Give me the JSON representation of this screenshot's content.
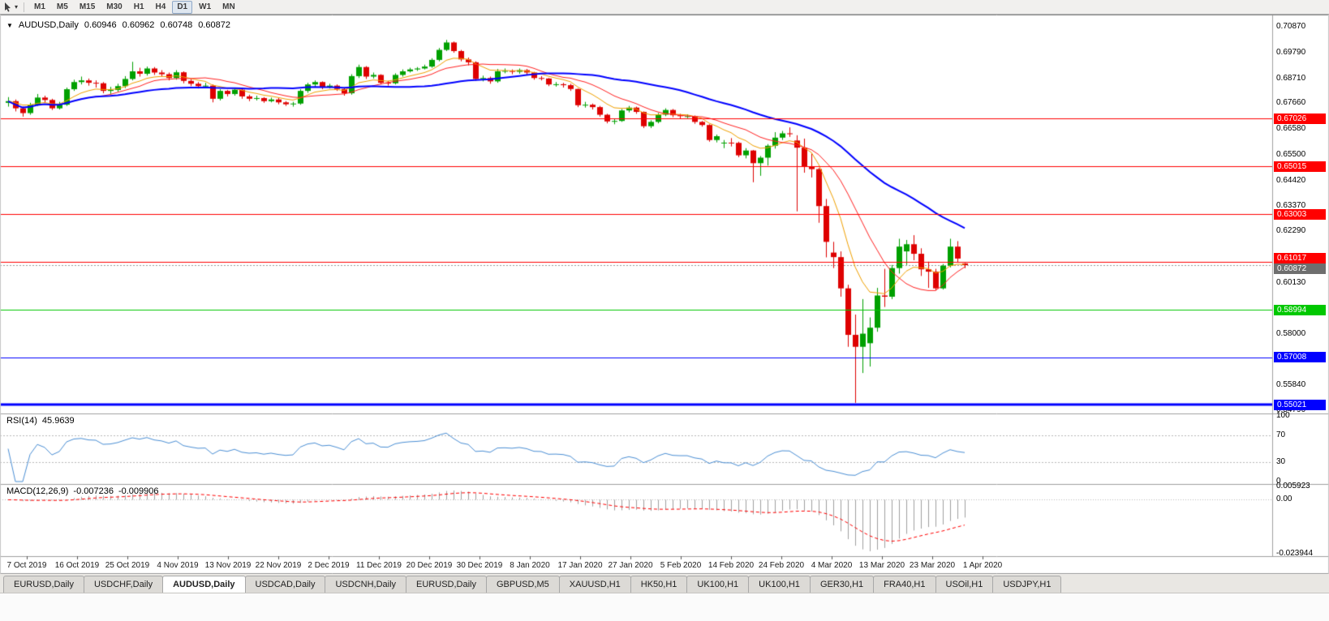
{
  "icons": {
    "collapse": "▼",
    "caret": "▾"
  },
  "toolbar": {
    "timeframes": [
      "M1",
      "M5",
      "M15",
      "M30",
      "H1",
      "H4",
      "D1",
      "W1",
      "MN"
    ],
    "active_timeframe": "D1"
  },
  "chart": {
    "title": "AUDUSD,Daily",
    "ohlc": {
      "open": "0.60946",
      "high": "0.60962",
      "low": "0.60748",
      "close": "0.60872"
    }
  },
  "rsi_panel": {
    "name": "RSI(14)",
    "value": "45.9639"
  },
  "macd_panel": {
    "name": "MACD(12,26,9)",
    "main_value": "-0.007236",
    "signal_value": "-0.009906"
  },
  "tabs": {
    "items": [
      "EURUSD,Daily",
      "USDCHF,Daily",
      "AUDUSD,Daily",
      "USDCAD,Daily",
      "USDCNH,Daily",
      "EURUSD,Daily",
      "GBPUSD,M5",
      "XAUUSD,H1",
      "HK50,H1",
      "UK100,H1",
      "UK100,H1",
      "GER30,H1",
      "FRA40,H1",
      "USOil,H1",
      "USDJPY,H1"
    ],
    "active_index": 2
  },
  "chart_data": {
    "type": "candlestick",
    "symbol": "AUDUSD",
    "timeframe": "Daily",
    "y_range": [
      0.5479,
      0.7087
    ],
    "y_tick_labels": [
      "0.70870",
      "0.69790",
      "0.68710",
      "0.67660",
      "0.66580",
      "0.65500",
      "0.64420",
      "0.63370",
      "0.62290",
      "0.60130",
      "0.58000",
      "0.55840",
      "0.54790"
    ],
    "x_tick_labels": [
      "7 Oct 2019",
      "16 Oct 2019",
      "25 Oct 2019",
      "4 Nov 2019",
      "13 Nov 2019",
      "22 Nov 2019",
      "2 Dec 2019",
      "11 Dec 2019",
      "20 Dec 2019",
      "30 Dec 2019",
      "8 Jan 2020",
      "17 Jan 2020",
      "27 Jan 2020",
      "5 Feb 2020",
      "14 Feb 2020",
      "24 Feb 2020",
      "4 Mar 2020",
      "13 Mar 2020",
      "23 Mar 2020",
      "1 Apr 2020"
    ],
    "up_color": "#00A000",
    "down_color": "#DE0000",
    "candles": [
      [
        0.6768,
        0.6792,
        0.6752,
        0.6775
      ],
      [
        0.6775,
        0.6782,
        0.6732,
        0.6745
      ],
      [
        0.6745,
        0.6752,
        0.671,
        0.6725
      ],
      [
        0.6725,
        0.6768,
        0.6718,
        0.676
      ],
      [
        0.676,
        0.6805,
        0.6755,
        0.679
      ],
      [
        0.679,
        0.6798,
        0.6768,
        0.678
      ],
      [
        0.678,
        0.6785,
        0.6738,
        0.6745
      ],
      [
        0.6745,
        0.6772,
        0.674,
        0.676
      ],
      [
        0.676,
        0.6832,
        0.6755,
        0.6825
      ],
      [
        0.6825,
        0.6865,
        0.6818,
        0.6855
      ],
      [
        0.6855,
        0.6878,
        0.6845,
        0.6862
      ],
      [
        0.6862,
        0.687,
        0.684,
        0.6852
      ],
      [
        0.6852,
        0.6862,
        0.6832,
        0.685
      ],
      [
        0.685,
        0.6855,
        0.6808,
        0.6818
      ],
      [
        0.6818,
        0.6835,
        0.6805,
        0.6822
      ],
      [
        0.6822,
        0.6848,
        0.6815,
        0.6838
      ],
      [
        0.6838,
        0.688,
        0.683,
        0.6868
      ],
      [
        0.6868,
        0.694,
        0.6862,
        0.69
      ],
      [
        0.69,
        0.6915,
        0.6878,
        0.689
      ],
      [
        0.689,
        0.692,
        0.6882,
        0.6912
      ],
      [
        0.6912,
        0.6918,
        0.6885,
        0.6895
      ],
      [
        0.6895,
        0.6905,
        0.6878,
        0.6888
      ],
      [
        0.6888,
        0.6895,
        0.6862,
        0.6872
      ],
      [
        0.6872,
        0.6905,
        0.6865,
        0.6896
      ],
      [
        0.6896,
        0.69,
        0.685,
        0.686
      ],
      [
        0.686,
        0.6868,
        0.6838,
        0.6848
      ],
      [
        0.6848,
        0.6855,
        0.6828,
        0.6838
      ],
      [
        0.6838,
        0.6852,
        0.683,
        0.684
      ],
      [
        0.684,
        0.6845,
        0.677,
        0.6785
      ],
      [
        0.6785,
        0.6825,
        0.6778,
        0.6818
      ],
      [
        0.6818,
        0.6822,
        0.6795,
        0.6805
      ],
      [
        0.6805,
        0.6832,
        0.6798,
        0.6823
      ],
      [
        0.6823,
        0.6828,
        0.6785,
        0.6795
      ],
      [
        0.6795,
        0.6802,
        0.6775,
        0.6785
      ],
      [
        0.6785,
        0.6798,
        0.6778,
        0.6788
      ],
      [
        0.6788,
        0.6792,
        0.6768,
        0.6775
      ],
      [
        0.6775,
        0.679,
        0.677,
        0.6782
      ],
      [
        0.6782,
        0.6788,
        0.6762,
        0.677
      ],
      [
        0.677,
        0.6775,
        0.6755,
        0.6762
      ],
      [
        0.6762,
        0.6772,
        0.6752,
        0.6765
      ],
      [
        0.6765,
        0.6825,
        0.676,
        0.6818
      ],
      [
        0.6818,
        0.6852,
        0.681,
        0.6845
      ],
      [
        0.6845,
        0.6862,
        0.6835,
        0.6855
      ],
      [
        0.6855,
        0.6858,
        0.6825,
        0.6835
      ],
      [
        0.6835,
        0.6848,
        0.6828,
        0.684
      ],
      [
        0.684,
        0.6845,
        0.6818,
        0.6826
      ],
      [
        0.6826,
        0.683,
        0.6798,
        0.6808
      ],
      [
        0.6808,
        0.6888,
        0.6802,
        0.688
      ],
      [
        0.688,
        0.6928,
        0.6872,
        0.6918
      ],
      [
        0.6918,
        0.6922,
        0.6868,
        0.6878
      ],
      [
        0.6878,
        0.6895,
        0.687,
        0.6885
      ],
      [
        0.6885,
        0.6888,
        0.6845,
        0.6852
      ],
      [
        0.6852,
        0.686,
        0.684,
        0.685
      ],
      [
        0.685,
        0.6892,
        0.6845,
        0.6885
      ],
      [
        0.6885,
        0.6908,
        0.6878,
        0.69
      ],
      [
        0.69,
        0.6915,
        0.6895,
        0.6908
      ],
      [
        0.6908,
        0.6918,
        0.6902,
        0.6912
      ],
      [
        0.6912,
        0.6928,
        0.6908,
        0.692
      ],
      [
        0.692,
        0.6955,
        0.6915,
        0.6948
      ],
      [
        0.6948,
        0.6998,
        0.6942,
        0.699
      ],
      [
        0.699,
        0.7032,
        0.6985,
        0.7021
      ],
      [
        0.7021,
        0.7025,
        0.6978,
        0.6985
      ],
      [
        0.6985,
        0.699,
        0.6942,
        0.695
      ],
      [
        0.695,
        0.6958,
        0.6925,
        0.6938
      ],
      [
        0.6938,
        0.6942,
        0.686,
        0.6868
      ],
      [
        0.6868,
        0.6882,
        0.6858,
        0.6872
      ],
      [
        0.6872,
        0.6878,
        0.6848,
        0.6858
      ],
      [
        0.6858,
        0.691,
        0.6852,
        0.69
      ],
      [
        0.69,
        0.6912,
        0.6892,
        0.6902
      ],
      [
        0.6902,
        0.6908,
        0.6888,
        0.6898
      ],
      [
        0.6898,
        0.6912,
        0.689,
        0.6905
      ],
      [
        0.6905,
        0.691,
        0.6885,
        0.6895
      ],
      [
        0.6895,
        0.6898,
        0.6865,
        0.6872
      ],
      [
        0.6872,
        0.688,
        0.6862,
        0.687
      ],
      [
        0.687,
        0.6872,
        0.6838,
        0.6845
      ],
      [
        0.6845,
        0.6855,
        0.6836,
        0.6846
      ],
      [
        0.6846,
        0.6852,
        0.6832,
        0.6842
      ],
      [
        0.6842,
        0.6848,
        0.6818,
        0.6826
      ],
      [
        0.6826,
        0.6828,
        0.675,
        0.6758
      ],
      [
        0.6758,
        0.6772,
        0.6748,
        0.676
      ],
      [
        0.676,
        0.6765,
        0.674,
        0.675
      ],
      [
        0.675,
        0.6755,
        0.671,
        0.6718
      ],
      [
        0.6718,
        0.6722,
        0.6682,
        0.669
      ],
      [
        0.669,
        0.6702,
        0.6678,
        0.6692
      ],
      [
        0.6692,
        0.6742,
        0.6688,
        0.6736
      ],
      [
        0.6736,
        0.6755,
        0.6728,
        0.6748
      ],
      [
        0.6748,
        0.6752,
        0.6722,
        0.673
      ],
      [
        0.673,
        0.6732,
        0.6662,
        0.667
      ],
      [
        0.667,
        0.6695,
        0.6662,
        0.6688
      ],
      [
        0.6688,
        0.6725,
        0.6682,
        0.6718
      ],
      [
        0.6718,
        0.6745,
        0.6712,
        0.6738
      ],
      [
        0.6738,
        0.6742,
        0.6708,
        0.6716
      ],
      [
        0.6716,
        0.6722,
        0.6702,
        0.6712
      ],
      [
        0.6712,
        0.672,
        0.6704,
        0.6712
      ],
      [
        0.6712,
        0.6715,
        0.668,
        0.6688
      ],
      [
        0.6688,
        0.6692,
        0.6668,
        0.6675
      ],
      [
        0.6675,
        0.6678,
        0.6605,
        0.6612
      ],
      [
        0.6612,
        0.6635,
        0.6602,
        0.6628
      ],
      [
        0.66,
        0.6612,
        0.6578,
        0.6601
      ],
      [
        0.6601,
        0.662,
        0.6585,
        0.66
      ],
      [
        0.66,
        0.6605,
        0.654,
        0.6548
      ],
      [
        0.6548,
        0.6578,
        0.6535,
        0.6568
      ],
      [
        0.6568,
        0.657,
        0.6435,
        0.6515
      ],
      [
        0.6515,
        0.6545,
        0.6462,
        0.6538
      ],
      [
        0.6538,
        0.6595,
        0.6505,
        0.6588
      ],
      [
        0.6588,
        0.6645,
        0.6576,
        0.6622
      ],
      [
        0.6622,
        0.665,
        0.6612,
        0.664
      ],
      [
        0.664,
        0.6665,
        0.6625,
        0.6638
      ],
      [
        0.661,
        0.6632,
        0.6313,
        0.658
      ],
      [
        0.658,
        0.6618,
        0.6475,
        0.65
      ],
      [
        0.65,
        0.6555,
        0.6455,
        0.649
      ],
      [
        0.649,
        0.6495,
        0.6265,
        0.6335
      ],
      [
        0.6335,
        0.6365,
        0.612,
        0.6185
      ],
      [
        0.614,
        0.6185,
        0.6075,
        0.6121
      ],
      [
        0.6121,
        0.6145,
        0.5955,
        0.599
      ],
      [
        0.599,
        0.6005,
        0.5745,
        0.5795
      ],
      [
        0.5795,
        0.588,
        0.551,
        0.5745
      ],
      [
        0.5745,
        0.5945,
        0.5635,
        0.58
      ],
      [
        0.576,
        0.5868,
        0.5662,
        0.5825
      ],
      [
        0.5825,
        0.5992,
        0.5808,
        0.596
      ],
      [
        0.596,
        0.6072,
        0.5912,
        0.5955
      ],
      [
        0.5955,
        0.6088,
        0.5945,
        0.6075
      ],
      [
        0.6075,
        0.6198,
        0.6052,
        0.6165
      ],
      [
        0.6145,
        0.6193,
        0.6088,
        0.6175
      ],
      [
        0.6175,
        0.6213,
        0.6108,
        0.6135
      ],
      [
        0.6135,
        0.6158,
        0.6042,
        0.607
      ],
      [
        0.607,
        0.6102,
        0.5992,
        0.606
      ],
      [
        0.606,
        0.6072,
        0.5982,
        0.599
      ],
      [
        0.599,
        0.6092,
        0.5985,
        0.6085
      ],
      [
        0.6085,
        0.6198,
        0.6078,
        0.6165
      ],
      [
        0.6165,
        0.6188,
        0.6098,
        0.6115
      ],
      [
        0.60946,
        0.60962,
        0.60748,
        0.60872
      ]
    ],
    "moving_averages": [
      {
        "name": "ma-fast",
        "method": "ema",
        "period": 8,
        "color": "#F0A000",
        "width": 1
      },
      {
        "name": "ma-medium",
        "method": "sma",
        "period": 13,
        "color": "#FF2020",
        "width": 1
      },
      {
        "name": "ma-slow",
        "method": "sma",
        "period": 34,
        "color": "#0000FF",
        "width": 2
      }
    ],
    "horizontal_levels": [
      {
        "price": 0.67026,
        "label": "0.67026",
        "color": "#FF0000",
        "width": 1
      },
      {
        "price": 0.65015,
        "label": "0.65015",
        "color": "#FF0000",
        "width": 1
      },
      {
        "price": 0.63003,
        "label": "0.63003",
        "color": "#FF0000",
        "width": 1
      },
      {
        "price": 0.61017,
        "label": "0.61017",
        "color": "#FF0000",
        "width": 1
      },
      {
        "price": 0.58994,
        "label": "0.58994",
        "color": "#00C800",
        "width": 1
      },
      {
        "price": 0.57008,
        "label": "0.57008",
        "color": "#0000FF",
        "width": 1
      },
      {
        "price": 0.55021,
        "label": "0.55021",
        "color": "#0000FF",
        "width": 3
      }
    ],
    "current_price": {
      "value": 0.60872,
      "label": "0.60872",
      "color": "#6E6E6E"
    },
    "rsi": {
      "period": 14,
      "current": 45.9639,
      "levels": [
        70,
        30
      ],
      "range": [
        0,
        100
      ],
      "axis_labels": [
        "100",
        "70",
        "30",
        "0"
      ],
      "color": "#4B8FD5"
    },
    "macd": {
      "fast": 12,
      "slow": 26,
      "signal_period": 9,
      "current_main": -0.007236,
      "current_signal": -0.009906,
      "range_max": 0.005923,
      "range_min": -0.023944,
      "axis_labels": [
        "0.005923",
        "0.00",
        "-0.023944"
      ],
      "histogram_color": "#A0A0A0",
      "signal_color": "#FF0000"
    }
  }
}
